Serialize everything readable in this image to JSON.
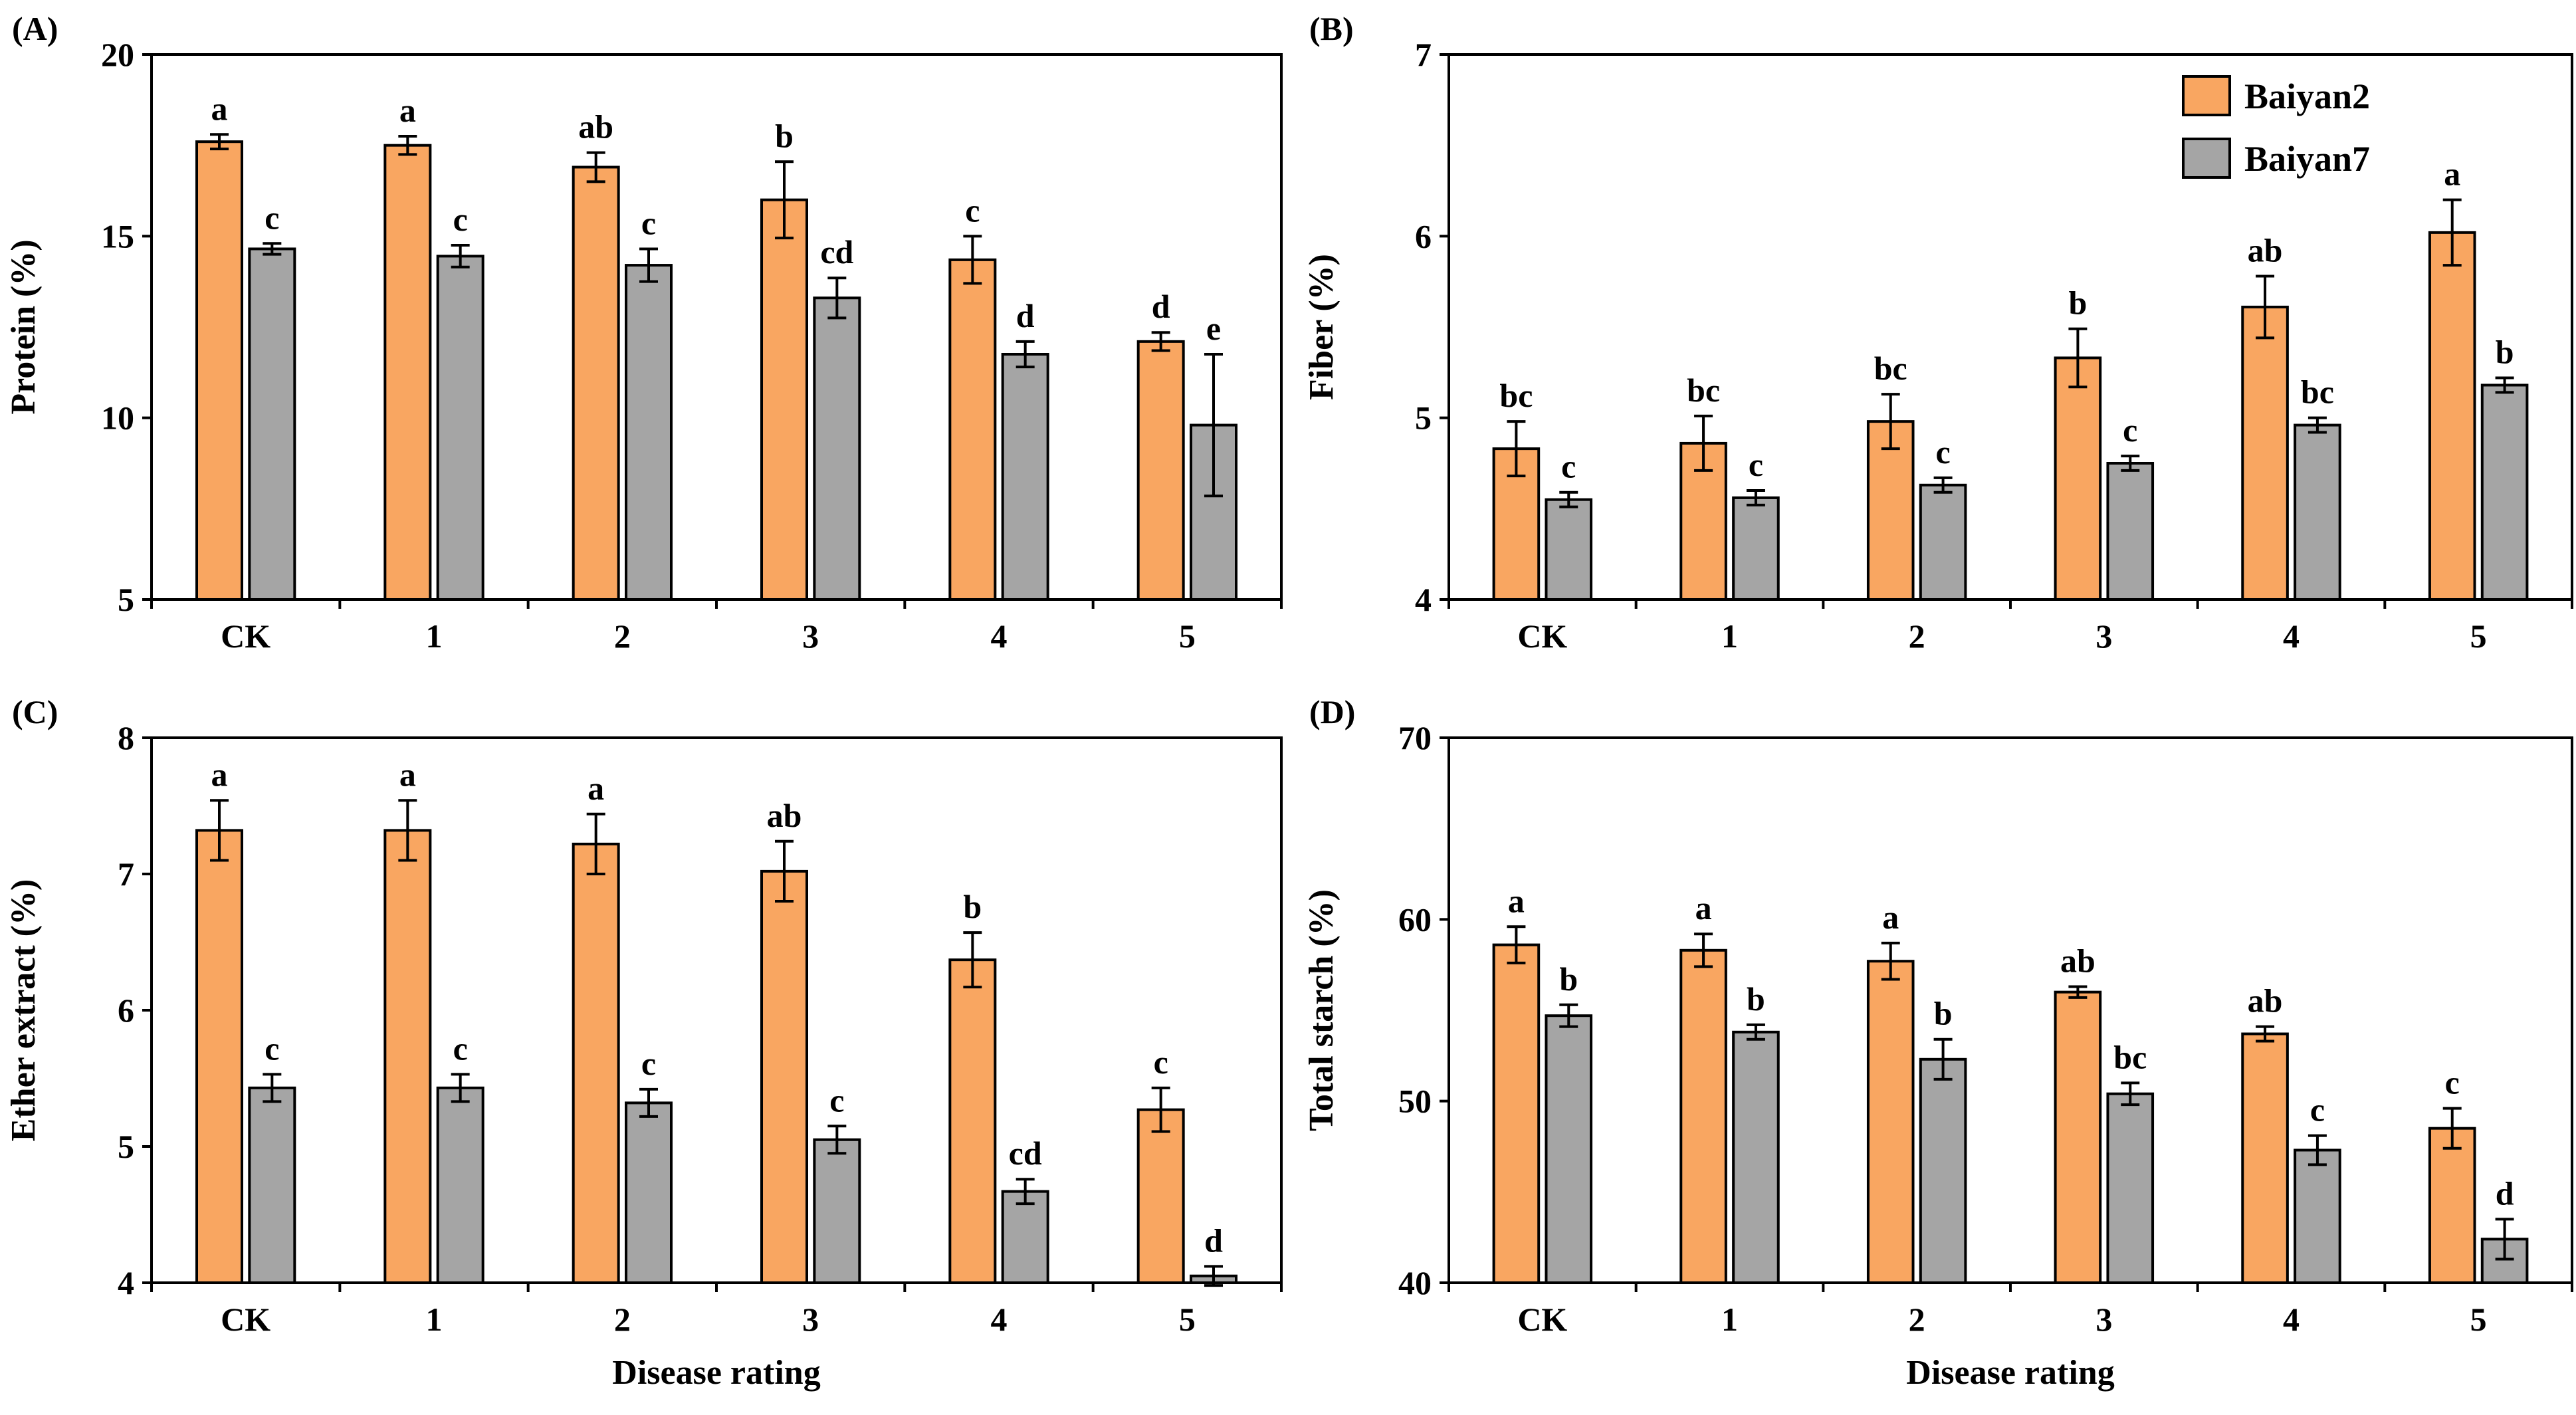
{
  "colors": {
    "Baiyan2": "#F9A661",
    "Baiyan7": "#A5A5A5",
    "edge": "#000000"
  },
  "legend": {
    "items": [
      "Baiyan2",
      "Baiyan7"
    ]
  },
  "chart_data": [
    {
      "type": "bar",
      "panel": "(A)",
      "categories": [
        "CK",
        "1",
        "2",
        "3",
        "4",
        "5"
      ],
      "ylabel": "Protein (%)",
      "xlabel": "",
      "ylim": [
        5,
        20
      ],
      "yticks": [
        5,
        10,
        15,
        20
      ],
      "series": [
        {
          "name": "Baiyan2",
          "values": [
            17.6,
            17.5,
            16.9,
            16.0,
            14.35,
            12.1
          ],
          "errors": [
            0.2,
            0.25,
            0.4,
            1.05,
            0.65,
            0.25
          ],
          "labels": [
            "a",
            "a",
            "ab",
            "b",
            "c",
            "d"
          ]
        },
        {
          "name": "Baiyan7",
          "values": [
            14.65,
            14.45,
            14.2,
            13.3,
            11.75,
            9.8
          ],
          "errors": [
            0.15,
            0.3,
            0.45,
            0.55,
            0.35,
            1.95
          ],
          "labels": [
            "c",
            "c",
            "c",
            "cd",
            "d",
            "e"
          ]
        }
      ]
    },
    {
      "type": "bar",
      "panel": "(B)",
      "categories": [
        "CK",
        "1",
        "2",
        "3",
        "4",
        "5"
      ],
      "ylabel": "Fiber (%)",
      "xlabel": "",
      "ylim": [
        4,
        7
      ],
      "yticks": [
        4,
        5,
        6,
        7
      ],
      "series": [
        {
          "name": "Baiyan2",
          "values": [
            4.83,
            4.86,
            4.98,
            5.33,
            5.61,
            6.02
          ],
          "errors": [
            0.15,
            0.15,
            0.15,
            0.16,
            0.17,
            0.18
          ],
          "labels": [
            "bc",
            "bc",
            "bc",
            "b",
            "ab",
            "a"
          ]
        },
        {
          "name": "Baiyan7",
          "values": [
            4.55,
            4.56,
            4.63,
            4.75,
            4.96,
            5.18
          ],
          "errors": [
            0.04,
            0.04,
            0.04,
            0.04,
            0.04,
            0.04
          ],
          "labels": [
            "c",
            "c",
            "c",
            "c",
            "bc",
            "b"
          ]
        }
      ]
    },
    {
      "type": "bar",
      "panel": "(C)",
      "categories": [
        "CK",
        "1",
        "2",
        "3",
        "4",
        "5"
      ],
      "ylabel": "Ether extract (%)",
      "xlabel": "Disease rating",
      "ylim": [
        4,
        8
      ],
      "yticks": [
        4,
        5,
        6,
        7,
        8
      ],
      "series": [
        {
          "name": "Baiyan2",
          "values": [
            7.32,
            7.32,
            7.22,
            7.02,
            6.37,
            5.27
          ],
          "errors": [
            0.22,
            0.22,
            0.22,
            0.22,
            0.2,
            0.16
          ],
          "labels": [
            "a",
            "a",
            "a",
            "ab",
            "b",
            "c"
          ]
        },
        {
          "name": "Baiyan7",
          "values": [
            5.43,
            5.43,
            5.32,
            5.05,
            4.67,
            4.05
          ],
          "errors": [
            0.1,
            0.1,
            0.1,
            0.1,
            0.09,
            0.07
          ],
          "labels": [
            "c",
            "c",
            "c",
            "c",
            "cd",
            "d"
          ]
        }
      ]
    },
    {
      "type": "bar",
      "panel": "(D)",
      "categories": [
        "CK",
        "1",
        "2",
        "3",
        "4",
        "5"
      ],
      "ylabel": "Total starch (%)",
      "xlabel": "Disease rating",
      "ylim": [
        40,
        70
      ],
      "yticks": [
        40,
        50,
        60,
        70
      ],
      "series": [
        {
          "name": "Baiyan2",
          "values": [
            58.6,
            58.3,
            57.7,
            56.0,
            53.7,
            48.5
          ],
          "errors": [
            1.0,
            0.9,
            1.0,
            0.3,
            0.4,
            1.1
          ],
          "labels": [
            "a",
            "a",
            "a",
            "ab",
            "ab",
            "c"
          ]
        },
        {
          "name": "Baiyan7",
          "values": [
            54.7,
            53.8,
            52.3,
            50.4,
            47.3,
            42.4
          ],
          "errors": [
            0.6,
            0.4,
            1.1,
            0.6,
            0.8,
            1.1
          ],
          "labels": [
            "b",
            "b",
            "b",
            "bc",
            "c",
            "d"
          ]
        }
      ]
    }
  ]
}
